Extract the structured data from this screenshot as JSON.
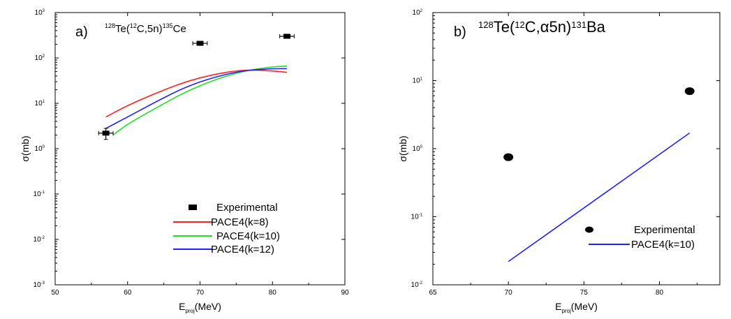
{
  "chart_data": [
    {
      "type": "line",
      "panel": "a)",
      "title_pre": "128",
      "title_mid1": "Te(",
      "title_sup2": "12",
      "title_mid2": "C,5n)",
      "title_sup3": "135",
      "title_post": "Ce",
      "xlabel_main": "E",
      "xlabel_sub": "proj",
      "xlabel_unit": "(MeV)",
      "ylabel": "σ(mb)",
      "xlim": [
        50,
        90
      ],
      "ylim_log10": [
        -3,
        3
      ],
      "yscale": "log",
      "xticks": [
        "50",
        "60",
        "70",
        "80",
        "90"
      ],
      "yticks": [
        {
          "base": "10",
          "exp": "-3"
        },
        {
          "base": "10",
          "exp": "-2"
        },
        {
          "base": "10",
          "exp": "-1"
        },
        {
          "base": "10",
          "exp": "0"
        },
        {
          "base": "10",
          "exp": "1"
        },
        {
          "base": "10",
          "exp": "2"
        },
        {
          "base": "10",
          "exp": "3"
        }
      ],
      "legend": "lower-center",
      "experimental": {
        "name": "Experimental",
        "points": [
          {
            "x": 57,
            "y": 2.2,
            "xerr": 1.0,
            "yerr": 0.6
          },
          {
            "x": 70,
            "y": 210,
            "xerr": 1.0,
            "yerr": 0
          },
          {
            "x": 82,
            "y": 300,
            "xerr": 1.0,
            "yerr": 0
          }
        ]
      },
      "series": [
        {
          "name": "PACE4(k=8)",
          "color": "#ff2020",
          "x": [
            57,
            60,
            64,
            68,
            72,
            76,
            80,
            82
          ],
          "y": [
            5.0,
            9,
            17,
            30,
            44,
            55,
            52,
            48
          ]
        },
        {
          "name": "PACE4(k=10)",
          "color": "#20e020",
          "x": [
            58,
            60,
            64,
            68,
            72,
            76,
            80,
            82
          ],
          "y": [
            2.0,
            3.5,
            8,
            18,
            33,
            52,
            64,
            66
          ]
        },
        {
          "name": "PACE4(k=12)",
          "color": "#2020ff",
          "x": [
            57,
            60,
            64,
            68,
            72,
            76,
            80,
            82
          ],
          "y": [
            2.8,
            5,
            11,
            23,
            38,
            53,
            58,
            58
          ]
        }
      ]
    },
    {
      "type": "line",
      "panel": "b)",
      "title_pre": "128",
      "title_mid1": "Te(",
      "title_sup2": "12",
      "title_mid2": "C,α5n)",
      "title_sup3": "131",
      "title_post": "Ba",
      "xlabel_main": "E",
      "xlabel_sub": "proj",
      "xlabel_unit": "(MeV)",
      "ylabel": "σ(mb)",
      "xlim": [
        65,
        84
      ],
      "ylim_log10": [
        -2,
        2
      ],
      "yscale": "log",
      "xticks": [
        "65",
        "70",
        "75",
        "80"
      ],
      "yticks": [
        {
          "base": "10",
          "exp": "-2"
        },
        {
          "base": "10",
          "exp": "-1"
        },
        {
          "base": "10",
          "exp": "0"
        },
        {
          "base": "10",
          "exp": "1"
        },
        {
          "base": "10",
          "exp": "2"
        }
      ],
      "legend": "lower-right",
      "experimental": {
        "name": "Experimental",
        "points": [
          {
            "x": 70,
            "y": 0.75
          },
          {
            "x": 82,
            "y": 7.0
          }
        ]
      },
      "series": [
        {
          "name": "PACE4(k=10)",
          "color": "#2020ff",
          "x": [
            70,
            82
          ],
          "y": [
            0.022,
            1.7
          ]
        }
      ]
    }
  ]
}
